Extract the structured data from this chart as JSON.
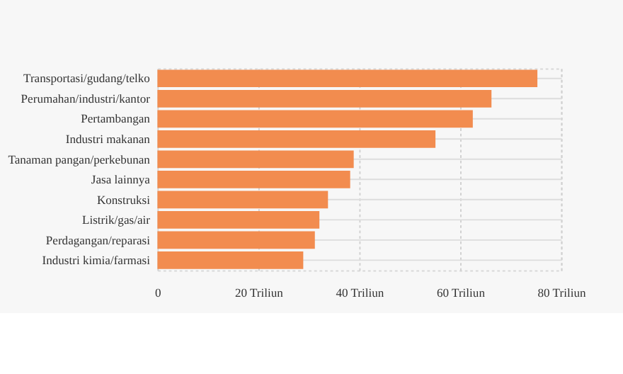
{
  "chart_data": {
    "type": "bar",
    "orientation": "horizontal",
    "categories": [
      "Transportasi/gudang/telko",
      "Perumahan/industri/kantor",
      "Pertambangan",
      "Industri makanan",
      "Tanaman pangan/perkebunan",
      "Jasa lainnya",
      "Konstruksi",
      "Listrik/gas/air",
      "Perdagangan/reparasi",
      "Industri kimia/farmasi"
    ],
    "values": [
      75.3,
      66.2,
      62.5,
      55.1,
      38.9,
      38.2,
      33.8,
      32.1,
      31.2,
      28.9
    ],
    "color": "#f28c4f",
    "xlim": [
      0,
      80
    ],
    "xticks": [
      0,
      {
        "value": 20,
        "label": "20 Triliun"
      },
      {
        "value": 40,
        "label": "40 Triliun"
      },
      {
        "value": 60,
        "label": "60 Triliun"
      },
      {
        "value": 80,
        "label": "80 Triliun"
      }
    ],
    "grid": true
  }
}
